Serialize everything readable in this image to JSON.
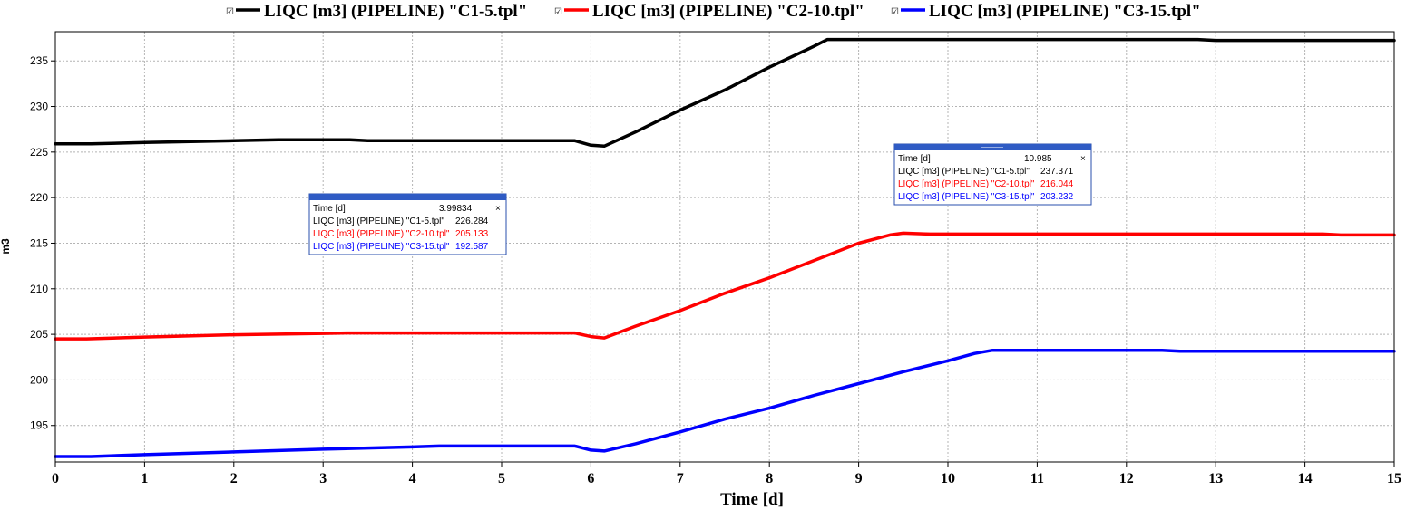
{
  "chart_data": {
    "type": "line",
    "title": "",
    "xlabel": "Time [d]",
    "ylabel": "m3",
    "xlim": [
      0,
      15
    ],
    "ylim": [
      191,
      238.2
    ],
    "xticks": [
      0,
      1,
      2,
      3,
      4,
      5,
      6,
      7,
      8,
      9,
      10,
      11,
      12,
      13,
      14,
      15
    ],
    "yticks": [
      195,
      200,
      205,
      210,
      215,
      220,
      225,
      230,
      235
    ],
    "grid": true,
    "legend_position": "top",
    "series": [
      {
        "name": "LIQC [m3] (PIPELINE) \"C1-5.tpl\"",
        "color": "#000000",
        "points": [
          [
            0,
            225.9
          ],
          [
            0.4,
            225.9
          ],
          [
            1,
            226.05
          ],
          [
            2,
            226.25
          ],
          [
            2.5,
            226.35
          ],
          [
            3.3,
            226.35
          ],
          [
            3.5,
            226.25
          ],
          [
            4,
            226.25
          ],
          [
            5,
            226.25
          ],
          [
            5.82,
            226.25
          ],
          [
            6,
            225.75
          ],
          [
            6.15,
            225.65
          ],
          [
            6.5,
            227.2
          ],
          [
            7,
            229.6
          ],
          [
            7.5,
            231.8
          ],
          [
            8,
            234.3
          ],
          [
            8.5,
            236.6
          ],
          [
            8.65,
            237.35
          ],
          [
            9,
            237.35
          ],
          [
            10,
            237.35
          ],
          [
            11,
            237.35
          ],
          [
            12,
            237.35
          ],
          [
            12.8,
            237.35
          ],
          [
            13,
            237.25
          ],
          [
            14,
            237.25
          ],
          [
            15,
            237.25
          ]
        ]
      },
      {
        "name": "LIQC [m3] (PIPELINE) \"C2-10.tpl\"",
        "color": "#ff0000",
        "points": [
          [
            0,
            204.5
          ],
          [
            0.35,
            204.5
          ],
          [
            1,
            204.7
          ],
          [
            2,
            204.95
          ],
          [
            3,
            205.1
          ],
          [
            3.3,
            205.15
          ],
          [
            4,
            205.15
          ],
          [
            5,
            205.15
          ],
          [
            5.82,
            205.15
          ],
          [
            6,
            204.75
          ],
          [
            6.15,
            204.6
          ],
          [
            6.5,
            205.9
          ],
          [
            7,
            207.6
          ],
          [
            7.5,
            209.5
          ],
          [
            8,
            211.2
          ],
          [
            8.5,
            213.1
          ],
          [
            9,
            215
          ],
          [
            9.35,
            215.9
          ],
          [
            9.5,
            216.1
          ],
          [
            9.8,
            216
          ],
          [
            10,
            216
          ],
          [
            11,
            216
          ],
          [
            12,
            216
          ],
          [
            13,
            216
          ],
          [
            14.2,
            216
          ],
          [
            14.4,
            215.9
          ],
          [
            15,
            215.9
          ]
        ]
      },
      {
        "name": "LIQC [m3] (PIPELINE) \"C3-15.tpl\"",
        "color": "#0000ff",
        "points": [
          [
            0,
            191.6
          ],
          [
            0.4,
            191.6
          ],
          [
            1,
            191.8
          ],
          [
            2,
            192.1
          ],
          [
            3,
            192.4
          ],
          [
            4,
            192.65
          ],
          [
            4.3,
            192.75
          ],
          [
            5,
            192.75
          ],
          [
            5.82,
            192.75
          ],
          [
            6,
            192.3
          ],
          [
            6.15,
            192.2
          ],
          [
            6.5,
            193
          ],
          [
            7,
            194.3
          ],
          [
            7.5,
            195.7
          ],
          [
            8,
            196.9
          ],
          [
            8.5,
            198.3
          ],
          [
            9,
            199.6
          ],
          [
            9.5,
            200.9
          ],
          [
            10,
            202.1
          ],
          [
            10.3,
            202.9
          ],
          [
            10.5,
            203.25
          ],
          [
            11,
            203.25
          ],
          [
            12,
            203.25
          ],
          [
            12.4,
            203.25
          ],
          [
            12.6,
            203.15
          ],
          [
            13,
            203.15
          ],
          [
            14,
            203.15
          ],
          [
            15,
            203.15
          ]
        ]
      }
    ]
  },
  "tooltips": [
    {
      "time_label": "Time [d]",
      "time_value": "3.99834",
      "close": "×",
      "rows": [
        {
          "label": "LIQC [m3] (PIPELINE) \"C1-5.tpl\"",
          "value": "226.284",
          "color": "#000000"
        },
        {
          "label": "LIQC [m3] (PIPELINE) \"C2-10.tpl\"",
          "value": "205.133",
          "color": "#ff0000"
        },
        {
          "label": "LIQC [m3] (PIPELINE) \"C3-15.tpl\"",
          "value": "192.587",
          "color": "#0000ff"
        }
      ]
    },
    {
      "time_label": "Time [d]",
      "time_value": "10.985",
      "close": "×",
      "rows": [
        {
          "label": "LIQC [m3] (PIPELINE) \"C1-5.tpl\"",
          "value": "237.371",
          "color": "#000000"
        },
        {
          "label": "LIQC [m3] (PIPELINE) \"C2-10.tpl\"",
          "value": "216.044",
          "color": "#ff0000"
        },
        {
          "label": "LIQC [m3] (PIPELINE) \"C3-15.tpl\"",
          "value": "203.232",
          "color": "#0000ff"
        }
      ]
    }
  ],
  "legend": {
    "checkbox_glyph": "☑"
  }
}
